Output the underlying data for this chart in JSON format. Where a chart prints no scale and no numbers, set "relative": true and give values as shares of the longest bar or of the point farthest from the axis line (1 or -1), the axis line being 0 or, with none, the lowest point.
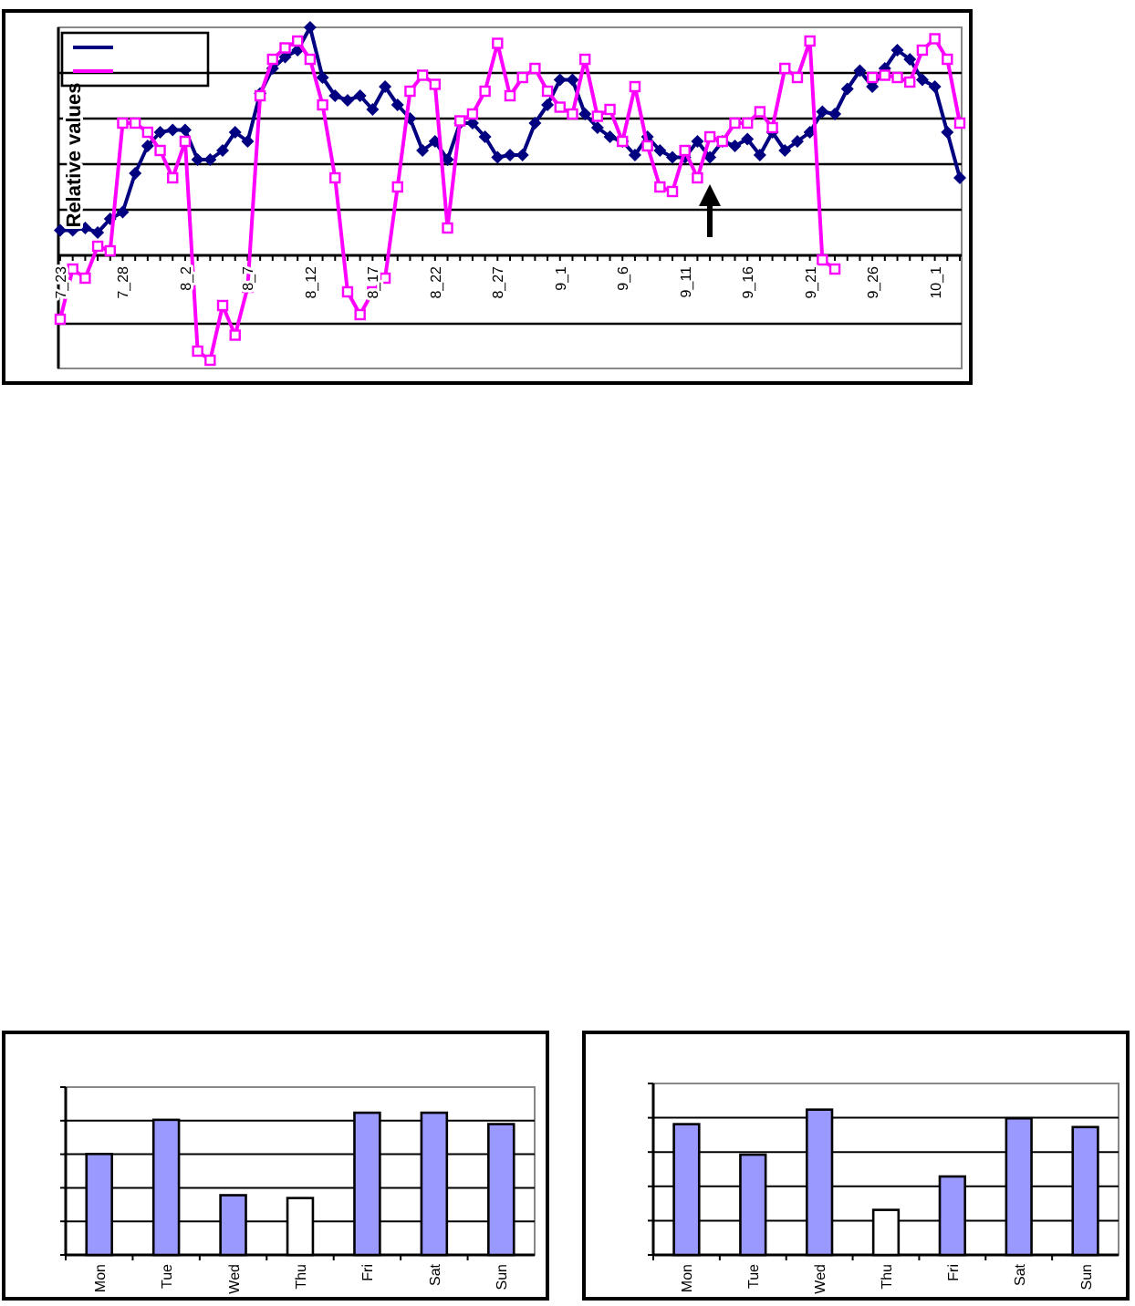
{
  "chart_data": [
    {
      "type": "line",
      "ylabel": "Relative values",
      "relative": true,
      "grid": "y",
      "categories": [
        "7_23",
        null,
        null,
        null,
        null,
        "7_28",
        null,
        null,
        null,
        null,
        "8_2",
        null,
        null,
        null,
        null,
        "8_7",
        null,
        null,
        null,
        null,
        "8_12",
        null,
        null,
        null,
        null,
        "8_17",
        null,
        null,
        null,
        null,
        "8_22",
        null,
        null,
        null,
        null,
        "8_27",
        null,
        null,
        null,
        null,
        "9_1",
        null,
        null,
        null,
        null,
        "9_6",
        null,
        null,
        null,
        null,
        "9_11",
        null,
        null,
        null,
        null,
        "9_16",
        null,
        null,
        null,
        null,
        "9_21",
        null,
        null,
        null,
        null,
        "9_26",
        null,
        null,
        null,
        null,
        "10_1",
        null,
        null
      ],
      "series": [
        {
          "color": "#000080",
          "marker": "diamond",
          "values": [
            0.11,
            0.11,
            0.12,
            0.1,
            0.16,
            0.19,
            0.36,
            0.48,
            0.54,
            0.55,
            0.55,
            0.42,
            0.42,
            0.46,
            0.54,
            0.5,
            0.71,
            0.82,
            0.87,
            0.9,
            1.0,
            0.78,
            0.7,
            0.68,
            0.7,
            0.64,
            0.74,
            0.66,
            0.6,
            0.46,
            0.5,
            0.42,
            0.58,
            0.58,
            0.52,
            0.43,
            0.44,
            0.44,
            0.58,
            0.66,
            0.77,
            0.77,
            0.62,
            0.56,
            0.52,
            0.5,
            0.44,
            0.52,
            0.46,
            0.43,
            0.43,
            0.5,
            0.43,
            0.5,
            0.48,
            0.51,
            0.44,
            0.54,
            0.46,
            0.5,
            0.54,
            0.63,
            0.62,
            0.73,
            0.81,
            0.74,
            0.82,
            0.9,
            0.86,
            0.77,
            0.74,
            0.54,
            0.34
          ]
        },
        {
          "color": "#ff00ff",
          "marker": "square",
          "values": [
            -0.28,
            -0.06,
            -0.1,
            0.04,
            0.02,
            0.58,
            0.58,
            0.54,
            0.46,
            0.34,
            0.5,
            -0.42,
            -0.46,
            -0.22,
            -0.35,
            -0.14,
            0.7,
            0.86,
            0.91,
            0.94,
            0.86,
            0.66,
            0.34,
            -0.16,
            -0.26,
            -0.16,
            -0.1,
            0.3,
            0.72,
            0.79,
            0.75,
            0.12,
            0.59,
            0.62,
            0.72,
            0.93,
            0.7,
            0.78,
            0.82,
            0.72,
            0.65,
            0.62,
            0.86,
            0.61,
            0.64,
            0.5,
            0.74,
            0.48,
            0.3,
            0.28,
            0.46,
            0.34,
            0.52,
            0.5,
            0.58,
            0.58,
            0.63,
            0.56,
            0.82,
            0.78,
            0.94,
            -0.02,
            -0.06,
            null,
            null,
            0.78,
            0.79,
            0.78,
            0.76,
            0.9,
            0.95,
            0.86,
            0.58
          ]
        }
      ]
    },
    {
      "type": "bar",
      "relative": true,
      "grid": "y",
      "categories": [
        "Mon",
        "Tue",
        "Wed",
        "Thu",
        "Fri",
        "Sat",
        "Sun"
      ],
      "values": [
        0.71,
        0.95,
        0.42,
        0.4,
        1,
        1,
        0.92
      ],
      "colors": [
        "#9999ff",
        "#9999ff",
        "#9999ff",
        "#ffffff",
        "#9999ff",
        "#9999ff",
        "#9999ff"
      ]
    },
    {
      "type": "bar",
      "relative": true,
      "grid": "y",
      "categories": [
        "Mon",
        "Tue",
        "Wed",
        "Thu",
        "Fri",
        "Sat",
        "Sun"
      ],
      "values": [
        0.9,
        0.69,
        1,
        0.31,
        0.54,
        0.94,
        0.88
      ],
      "colors": [
        "#9999ff",
        "#9999ff",
        "#9999ff",
        "#ffffff",
        "#9999ff",
        "#9999ff",
        "#9999ff"
      ]
    }
  ]
}
